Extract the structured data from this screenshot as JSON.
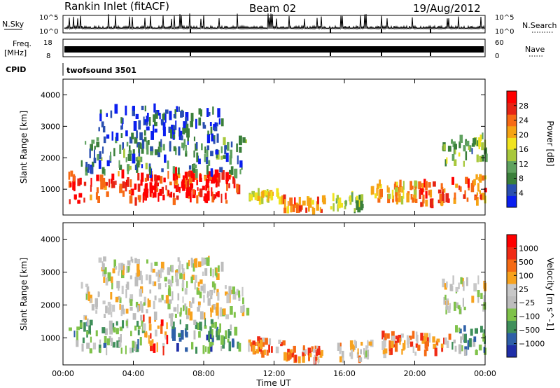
{
  "header": {
    "title": "Rankin Inlet (fitACF)",
    "beam": "Beam 02",
    "date": "19/Aug/2012"
  },
  "time_axis": {
    "ticks": [
      "00:00",
      "04:00",
      "08:00",
      "12:00",
      "16:00",
      "20:00",
      "00:00"
    ],
    "tick_hours": [
      0,
      4,
      8,
      12,
      16,
      20,
      24
    ],
    "label": "Time UT"
  },
  "strips": {
    "nsky": {
      "label": "N.Sky",
      "top": "10^5",
      "bottom": "10^0"
    },
    "nsearch": {
      "label": "N.Search",
      "top": "10^5",
      "bottom": "10^0"
    },
    "freq": {
      "label": "Freq.",
      "unit": "[MHz]",
      "top": "18",
      "bottom": "8"
    },
    "nave": {
      "label": "Nave",
      "top": "60",
      "bottom": "0"
    },
    "cpid": {
      "label": "CPID",
      "text": "twofsound 3501"
    }
  },
  "colors": {
    "power": [
      "#0a1ef0",
      "#2a4fb0",
      "#3a7f3a",
      "#5fa25f",
      "#a8c83c",
      "#f0e31e",
      "#f5a314",
      "#f76a14",
      "#e62414",
      "#ff0000"
    ],
    "velocity": [
      "#1f2ea8",
      "#2e5fa8",
      "#3f8f5a",
      "#7fc24a",
      "#bdbdbd",
      "#c8c8c8",
      "#f7a21e",
      "#f56a14",
      "#f02a14",
      "#ff0000"
    ]
  },
  "chart_data": [
    {
      "type": "heatmap",
      "title": "",
      "xlabel": "Time UT",
      "ylabel": "Slant Range [km]",
      "xlim": [
        0,
        24
      ],
      "ylim": [
        180,
        4500
      ],
      "yticks": [
        1000,
        2000,
        3000,
        4000
      ],
      "ytick_labels": [
        "1000",
        "2000",
        "3000",
        "4000"
      ],
      "colorbar": {
        "label": "Power [dB]",
        "range": [
          0,
          32
        ],
        "ticks": [
          4,
          8,
          12,
          16,
          20,
          24,
          28
        ],
        "tick_labels": [
          "4",
          "8",
          "12",
          "16",
          "20",
          "24",
          "28"
        ]
      },
      "regions": [
        {
          "t": [
            0.3,
            10.0
          ],
          "r": [
            600,
            1500
          ],
          "level": 0.85
        },
        {
          "t": [
            4.5,
            8.8
          ],
          "r": [
            700,
            1600
          ],
          "level": 0.95
        },
        {
          "t": [
            10.5,
            12.5
          ],
          "r": [
            600,
            900
          ],
          "level": 0.55
        },
        {
          "t": [
            12.5,
            14.8
          ],
          "r": [
            300,
            700
          ],
          "level": 0.75
        },
        {
          "t": [
            15.0,
            17.0
          ],
          "r": [
            300,
            800
          ],
          "level": 0.4
        },
        {
          "t": [
            17.5,
            20.5
          ],
          "r": [
            600,
            1200
          ],
          "level": 0.6
        },
        {
          "t": [
            20.0,
            22.0
          ],
          "r": [
            500,
            1200
          ],
          "level": 0.8
        },
        {
          "t": [
            22.0,
            24.0
          ],
          "r": [
            600,
            1400
          ],
          "level": 0.75
        },
        {
          "t": [
            21.5,
            24.0
          ],
          "r": [
            1800,
            2700
          ],
          "level": 0.35
        },
        {
          "t": [
            1.0,
            10.5
          ],
          "r": [
            1500,
            2600
          ],
          "level": 0.25
        },
        {
          "t": [
            2.0,
            9.0
          ],
          "r": [
            2600,
            3600
          ],
          "level": 0.12
        }
      ]
    },
    {
      "type": "heatmap",
      "title": "",
      "xlabel": "Time UT",
      "ylabel": "Slant Range [km]",
      "xlim": [
        0,
        24
      ],
      "ylim": [
        180,
        4500
      ],
      "yticks": [
        1000,
        2000,
        3000,
        4000
      ],
      "ytick_labels": [
        "1000",
        "2000",
        "3000",
        "4000"
      ],
      "colorbar": {
        "label": "Velocity [m s^-1]",
        "range": [
          -1250,
          1250
        ],
        "ticks": [
          1000,
          500,
          100,
          25,
          -25,
          -100,
          -500,
          -1000
        ],
        "tick_labels": [
          "1000",
          "500",
          "100",
          "25",
          "−25",
          "−100",
          "−500",
          "−1000"
        ]
      },
      "regions": [
        {
          "t": [
            0.3,
            4.5
          ],
          "r": [
            600,
            1500
          ],
          "level": 0.35
        },
        {
          "t": [
            4.5,
            6.0
          ],
          "r": [
            600,
            1600
          ],
          "level": 0.75
        },
        {
          "t": [
            6.0,
            10.0
          ],
          "r": [
            600,
            1500
          ],
          "level": 0.25
        },
        {
          "t": [
            10.5,
            12.5
          ],
          "r": [
            500,
            900
          ],
          "level": 0.7
        },
        {
          "t": [
            12.5,
            15.0
          ],
          "r": [
            300,
            700
          ],
          "level": 0.72
        },
        {
          "t": [
            15.5,
            17.5
          ],
          "r": [
            300,
            900
          ],
          "level": 0.55
        },
        {
          "t": [
            18.0,
            22.0
          ],
          "r": [
            500,
            1100
          ],
          "level": 0.68
        },
        {
          "t": [
            22.0,
            24.0
          ],
          "r": [
            500,
            1300
          ],
          "level": 0.3
        },
        {
          "t": [
            21.5,
            24.0
          ],
          "r": [
            1800,
            2800
          ],
          "level": 0.5
        },
        {
          "t": [
            1.0,
            10.5
          ],
          "r": [
            1600,
            2600
          ],
          "level": 0.5
        },
        {
          "t": [
            2.0,
            9.0
          ],
          "r": [
            2600,
            3400
          ],
          "level": 0.5
        }
      ]
    }
  ]
}
